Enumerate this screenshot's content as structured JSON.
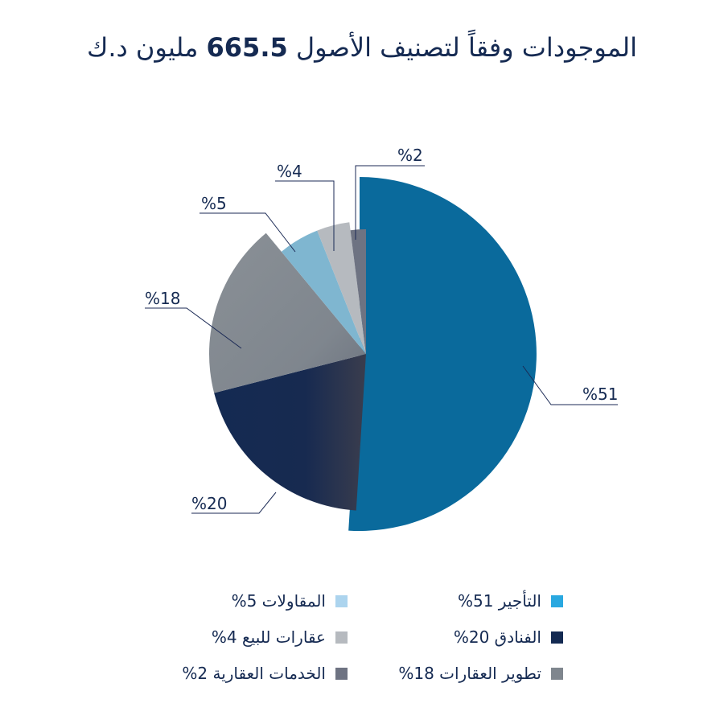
{
  "title": {
    "text": "الموجودات وفقاً لتصنيف الأصول",
    "amount": "665.5",
    "unit": "مليون د.ك"
  },
  "colors": {
    "text": "#152a52",
    "leader": "#1b2a55"
  },
  "chart_data": {
    "type": "pie",
    "title": "الموجودات وفقاً لتصنيف الأصول 665.5 مليون د.ك",
    "slices": [
      {
        "label": "التأجير",
        "value": 51,
        "data_label": "%51",
        "color": "#0a6a9c",
        "legend_color": "#29a8e0",
        "legend": "التأجير 51%"
      },
      {
        "label": "الفنادق",
        "value": 20,
        "data_label": "%20",
        "color": "#142a52",
        "legend_color": "#142a52",
        "legend": "الفنادق 20%"
      },
      {
        "label": "تطوير العقارات",
        "value": 18,
        "data_label": "%18",
        "color": "#7f868e",
        "legend_color": "#7f868e",
        "legend": "تطوير العقارات 18%"
      },
      {
        "label": "المقاولات",
        "value": 5,
        "data_label": "%5",
        "color": "#7fb6d0",
        "legend_color": "#acd4ee",
        "legend": "المقاولات 5%"
      },
      {
        "label": "عقارات للبيع",
        "value": 4,
        "data_label": "%4",
        "color": "#b6babf",
        "legend_color": "#b6babf",
        "legend": "عقارات للبيع 4%"
      },
      {
        "label": "الخدمات العقارية",
        "value": 2,
        "data_label": "%2",
        "color": "#6e7382",
        "legend_color": "#6e7382",
        "legend": "الخدمات العقارية 2%"
      }
    ],
    "legend_position": "bottom"
  }
}
